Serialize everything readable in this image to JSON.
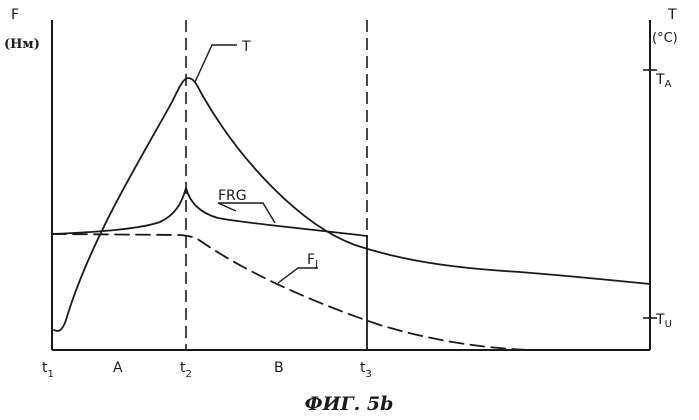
{
  "left_axis": {
    "symbol": "F",
    "unit": "(Нм)"
  },
  "right_axis": {
    "symbol": "T",
    "unit": "(°C)",
    "tick_upper": {
      "base": "T",
      "sub": "A"
    },
    "tick_lower": {
      "base": "T",
      "sub": "U"
    }
  },
  "time_labels": [
    {
      "base": "t",
      "sub": "1"
    },
    {
      "base": "t",
      "sub": "2"
    },
    {
      "base": "t",
      "sub": "3"
    }
  ],
  "phase_labels": [
    "A",
    "B"
  ],
  "curves": {
    "temperature": "T",
    "friction": "FRG",
    "force": {
      "base": "F",
      "sub": "J"
    }
  },
  "caption": "ФИГ. 5b"
}
